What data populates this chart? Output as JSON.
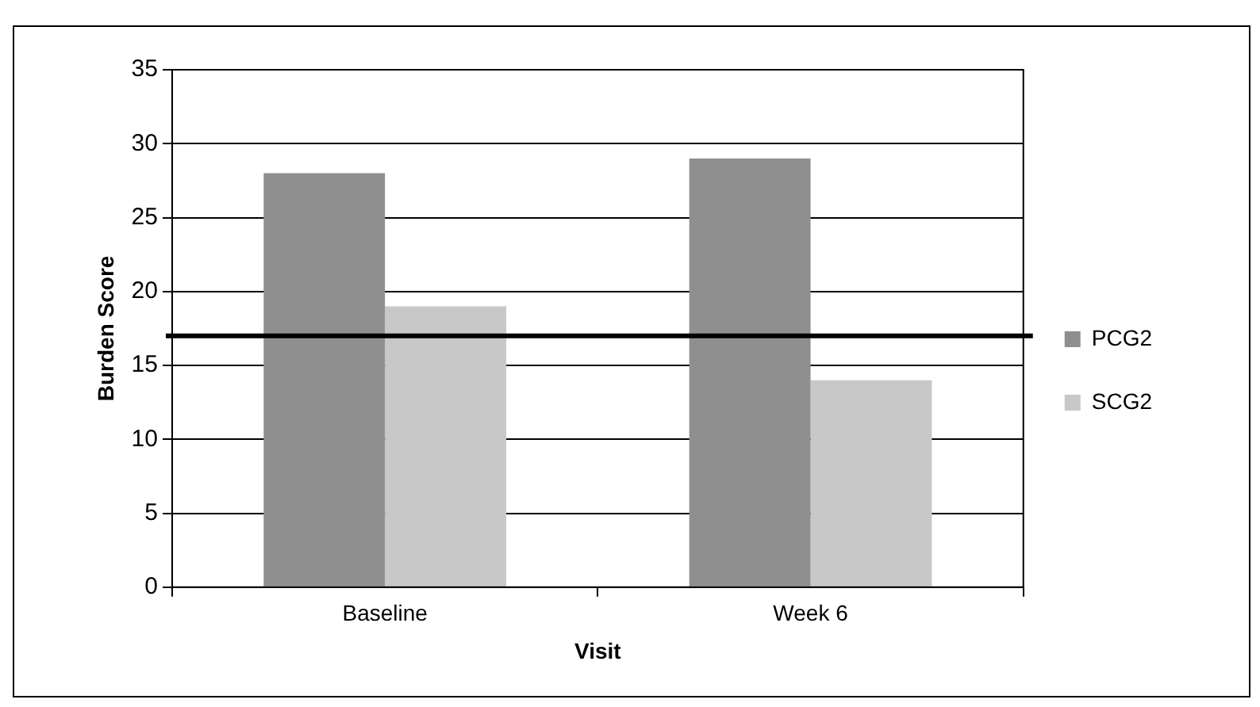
{
  "chart_data": {
    "type": "bar",
    "xlabel": "Visit",
    "ylabel": "Burden Score",
    "categories": [
      "Baseline",
      "Week 6"
    ],
    "series": [
      {
        "name": "PCG2",
        "color": "#8f8f8f",
        "values": [
          28,
          29
        ]
      },
      {
        "name": "SCG2",
        "color": "#c8c8c8",
        "values": [
          19,
          14
        ]
      }
    ],
    "ylim": [
      0,
      35
    ],
    "yticks": [
      0,
      5,
      10,
      15,
      20,
      25,
      30,
      35
    ],
    "grid": "y",
    "legend": "right",
    "ref_lines": [
      {
        "axis": "y",
        "value": 17,
        "color": "#000000"
      }
    ]
  }
}
